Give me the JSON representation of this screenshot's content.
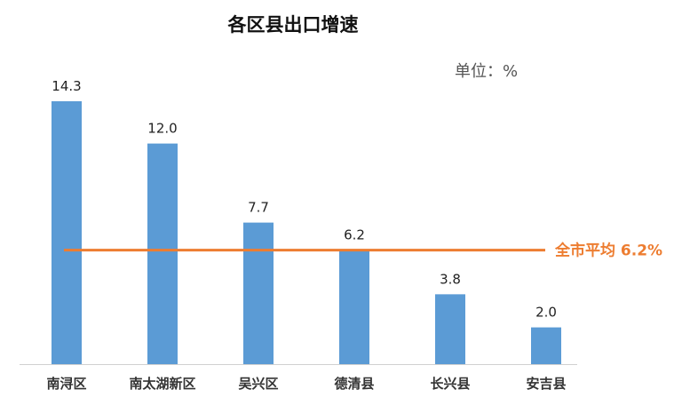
{
  "chart_data": {
    "type": "bar",
    "title": "各区县出口增速",
    "unit_label": "单位：%",
    "categories": [
      "南浔区",
      "南太湖新区",
      "吴兴区",
      "德清县",
      "长兴县",
      "安吉县"
    ],
    "values": [
      14.3,
      12.0,
      7.7,
      6.2,
      3.8,
      2.0
    ],
    "value_labels": [
      "14.3",
      "12.0",
      "7.7",
      "6.2",
      "3.8",
      "2.0"
    ],
    "ylim": [
      0,
      14.3
    ],
    "grid": false,
    "reference_line": {
      "value": 6.2,
      "label": "全市平均 6.2%"
    },
    "colors": {
      "bar": "#5B9BD5",
      "reference_line": "#ED7D31",
      "axis": "#D0D0D0"
    }
  }
}
